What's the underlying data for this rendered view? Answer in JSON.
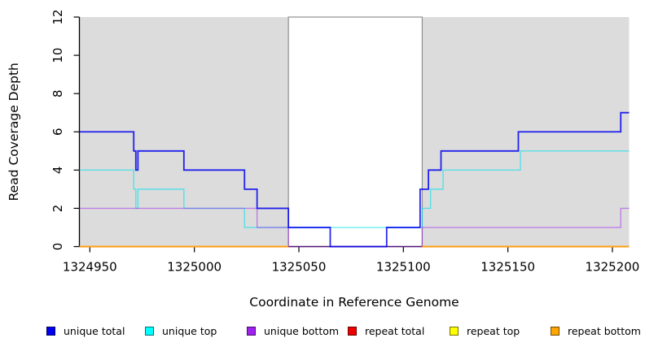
{
  "chart_data": {
    "type": "line",
    "subtype": "step-coverage-plot",
    "title": "",
    "xlabel": "Coordinate in Reference Genome",
    "ylabel": "Read Coverage Depth",
    "xlim": [
      1324945,
      1325208
    ],
    "ylim": [
      0,
      12
    ],
    "xticks": [
      1324950,
      1325000,
      1325050,
      1325100,
      1325150,
      1325200
    ],
    "yticks": [
      0,
      2,
      4,
      6,
      8,
      10,
      12
    ],
    "grid": "off",
    "legend_position": "bottom",
    "region_fill": "#dcdcdc",
    "gap_border_color": "#8f8f8f",
    "axis_color": "#000000",
    "repeat_regions": [
      [
        1324945,
        1325045
      ],
      [
        1325109,
        1325208
      ]
    ],
    "unique_region": [
      1325045,
      1325109
    ],
    "series": [
      {
        "name": "unique total",
        "color": "#0000ee",
        "line_color": "rgba(0,0,238,0.85)",
        "line_width": 1.8,
        "paths": [
          {
            "steps": [
              [
                1324945,
                6
              ],
              [
                1324971,
                5
              ],
              [
                1324972,
                4
              ],
              [
                1324973,
                5
              ],
              [
                1324995,
                4
              ],
              [
                1325024,
                3
              ],
              [
                1325030,
                2
              ],
              [
                1325045,
                1
              ],
              [
                1325065,
                0
              ],
              [
                1325092,
                1
              ],
              [
                1325108,
                3
              ],
              [
                1325112,
                4
              ],
              [
                1325118,
                5
              ],
              [
                1325155,
                6
              ],
              [
                1325204,
                7
              ]
            ],
            "end": 1325208
          }
        ]
      },
      {
        "name": "unique top",
        "color": "#00ffff",
        "line_color": "rgba(0,225,235,0.6)",
        "line_width": 1.4,
        "paths": [
          {
            "steps": [
              [
                1324945,
                4
              ],
              [
                1324971,
                3
              ],
              [
                1324972,
                2
              ],
              [
                1324973,
                3
              ],
              [
                1324995,
                2
              ],
              [
                1325024,
                1
              ],
              [
                1325109,
                2
              ],
              [
                1325113,
                3
              ],
              [
                1325119,
                4
              ],
              [
                1325156,
                5
              ]
            ],
            "end": 1325208
          }
        ]
      },
      {
        "name": "unique bottom",
        "color": "#a020f0",
        "line_color": "rgba(160,32,240,0.5)",
        "line_width": 1.4,
        "paths": [
          {
            "steps": [
              [
                1324945,
                2
              ],
              [
                1325030,
                1
              ],
              [
                1325045,
                0
              ],
              [
                1325109,
                1
              ],
              [
                1325204,
                2
              ]
            ],
            "end": 1325208
          }
        ]
      },
      {
        "name": "repeat total",
        "color": "#ee0000",
        "line_color": "rgba(238,0,0,0.6)",
        "line_width": 1.4,
        "paths": [
          {
            "steps": [
              [
                1324945,
                0
              ]
            ],
            "end": 1325045
          },
          {
            "steps": [
              [
                1325109,
                0
              ]
            ],
            "end": 1325208
          }
        ]
      },
      {
        "name": "repeat top",
        "color": "#ffff00",
        "line_color": "rgba(255,255,0,0.7)",
        "line_width": 1.4,
        "paths": [
          {
            "steps": [
              [
                1324945,
                0
              ]
            ],
            "end": 1325045
          },
          {
            "steps": [
              [
                1325109,
                0
              ]
            ],
            "end": 1325208
          }
        ]
      },
      {
        "name": "repeat bottom",
        "color": "#ffa500",
        "line_color": "#ff9f14",
        "line_width": 2,
        "paths": [
          {
            "steps": [
              [
                1324945,
                0
              ]
            ],
            "end": 1325045
          },
          {
            "steps": [
              [
                1325109,
                0
              ]
            ],
            "end": 1325208
          }
        ]
      }
    ]
  }
}
